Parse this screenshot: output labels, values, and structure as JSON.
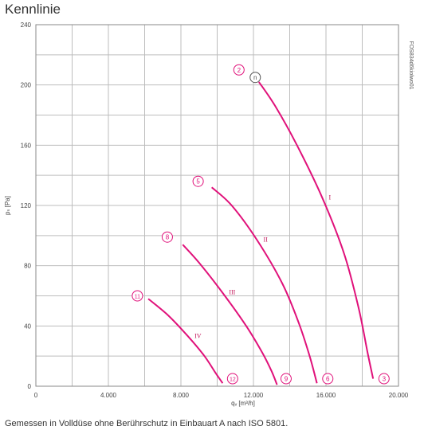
{
  "title": "Kennlinie",
  "caption": "Gemessen in Volldüse ohne Berührschutz in Einbauart A nach ISO 5801.",
  "side_code": "FOS834d6kiolwo01",
  "colors": {
    "curve": "#e0117a",
    "grid": "#bdbdbd",
    "axis": "#888888"
  },
  "chart_data": {
    "type": "line",
    "title": "Kennlinie",
    "xlabel": "qᵥ [m³/h]",
    "ylabel": "pₛ [Pa]",
    "xlim": [
      0,
      20000
    ],
    "ylim": [
      0,
      240
    ],
    "x_ticks": [
      0,
      2000,
      4000,
      6000,
      8000,
      10000,
      12000,
      14000,
      16000,
      18000,
      20000
    ],
    "x_tick_labels": [
      "0",
      "",
      "4.000",
      "",
      "8.000",
      "",
      "12.000",
      "",
      "16.000",
      "",
      "20.000"
    ],
    "y_ticks": [
      0,
      20,
      40,
      60,
      80,
      100,
      120,
      140,
      160,
      180,
      200,
      220,
      240
    ],
    "y_tick_labels": [
      "0",
      "",
      "40",
      "",
      "80",
      "",
      "120",
      "",
      "160",
      "",
      "200",
      "",
      "240"
    ],
    "grid": true,
    "series": [
      {
        "name": "I",
        "x": [
          12300,
          13200,
          14400,
          15800,
          17000,
          17800,
          18300,
          18600
        ],
        "y": [
          202,
          186,
          160,
          125,
          88,
          52,
          22,
          5
        ]
      },
      {
        "name": "II",
        "x": [
          9700,
          10800,
          12200,
          13600,
          14500,
          15100,
          15500
        ],
        "y": [
          132,
          120,
          97,
          68,
          42,
          20,
          2
        ]
      },
      {
        "name": "III",
        "x": [
          8100,
          9000,
          10300,
          11600,
          12500,
          13000,
          13300
        ],
        "y": [
          94,
          82,
          62,
          40,
          22,
          10,
          1
        ]
      },
      {
        "name": "IV",
        "x": [
          6200,
          7300,
          8400,
          9300,
          9900,
          10300
        ],
        "y": [
          58,
          47,
          33,
          20,
          9,
          2
        ]
      }
    ],
    "markers": [
      {
        "label": "2",
        "x": 11200,
        "y": 210
      },
      {
        "label": "n",
        "x": 12100,
        "y": 205
      },
      {
        "label": "5",
        "x": 8950,
        "y": 136
      },
      {
        "label": "8",
        "x": 7250,
        "y": 99
      },
      {
        "label": "11",
        "x": 5600,
        "y": 60
      },
      {
        "label": "3",
        "x": 19200,
        "y": 5
      },
      {
        "label": "6",
        "x": 16100,
        "y": 5
      },
      {
        "label": "9",
        "x": 13800,
        "y": 5
      },
      {
        "label": "12",
        "x": 10850,
        "y": 5
      }
    ]
  }
}
